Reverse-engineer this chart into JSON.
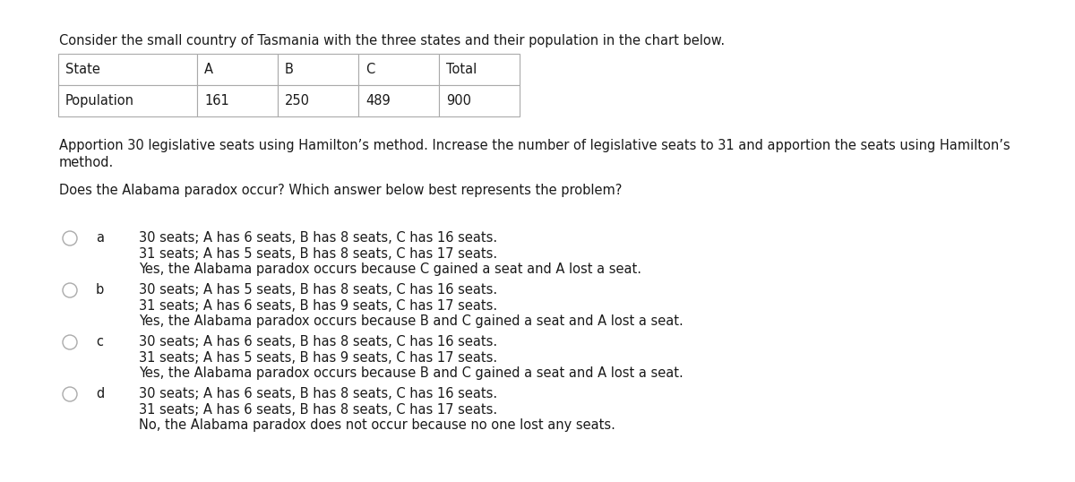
{
  "title": "Consider the small country of Tasmania with the three states and their population in the chart below.",
  "table_headers": [
    "State",
    "A",
    "B",
    "C",
    "Total"
  ],
  "table_row": [
    "Population",
    "161",
    "250",
    "489",
    "900"
  ],
  "paragraph1_line1": "Apportion 30 legislative seats using Hamilton’s method. Increase the number of legislative seats to 31 and apportion the seats using Hamilton’s",
  "paragraph1_line2": "method.",
  "paragraph2": "Does the Alabama paradox occur? Which answer below best represents the problem?",
  "options": [
    {
      "label": "a",
      "lines": [
        "30 seats; A has 6 seats, B has 8 seats, C has 16 seats.",
        "31 seats; A has 5 seats, B has 8 seats, C has 17 seats.",
        "Yes, the Alabama paradox occurs because C gained a seat and A lost a seat."
      ]
    },
    {
      "label": "b",
      "lines": [
        "30 seats; A has 5 seats, B has 8 seats, C has 16 seats.",
        "31 seats; A has 6 seats, B has 9 seats, C has 17 seats.",
        "Yes, the Alabama paradox occurs because B and C gained a seat and A lost a seat."
      ]
    },
    {
      "label": "c",
      "lines": [
        "30 seats; A has 6 seats, B has 8 seats, C has 16 seats.",
        "31 seats; A has 5 seats, B has 9 seats, C has 17 seats.",
        "Yes, the Alabama paradox occurs because B and C gained a seat and A lost a seat."
      ]
    },
    {
      "label": "d",
      "lines": [
        "30 seats; A has 6 seats, B has 8 seats, C has 16 seats.",
        "31 seats; A has 6 seats, B has 8 seats, C has 17 seats.",
        "No, the Alabama paradox does not occur because no one lost any seats."
      ]
    }
  ],
  "bg_color": "#ffffff",
  "text_color": "#1a1a1a",
  "table_border_color": "#aaaaaa",
  "font_size": 10.5,
  "circle_color": "#aaaaaa"
}
